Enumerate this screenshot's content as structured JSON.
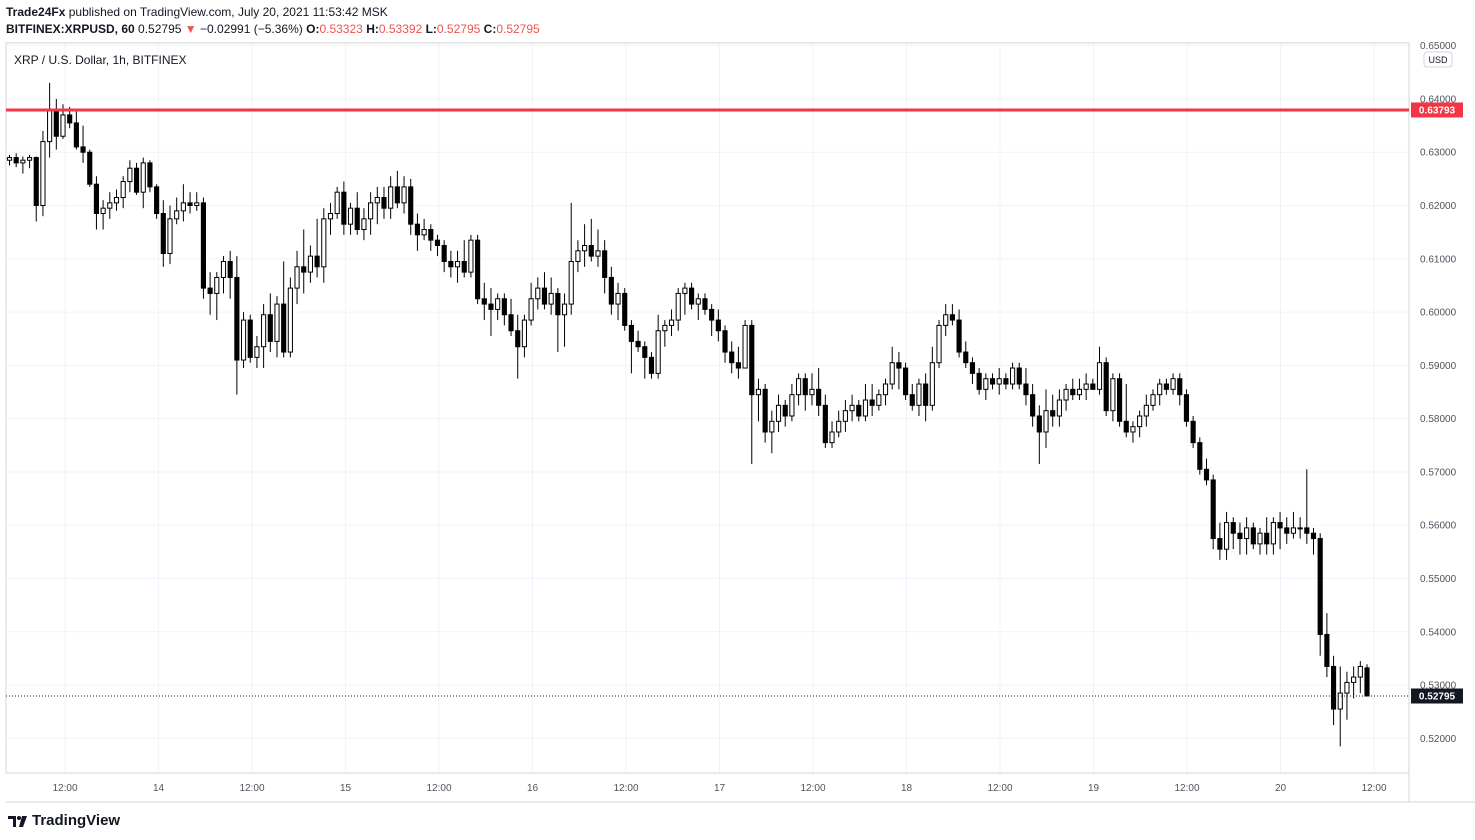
{
  "header": {
    "publisher": "Trade24Fx",
    "published_text": "published on TradingView.com, July 20, 2021 11:53:42 MSK",
    "symbol": "BITFINEX:XRPUSD, 60",
    "last": "0.52795",
    "change": "−0.02991 (−5.36%)",
    "open_label": "O:",
    "open": "0.53323",
    "high_label": "H:",
    "high": "0.53392",
    "low_label": "L:",
    "low": "0.52795",
    "close_label": "C:",
    "close": "0.52795"
  },
  "chart_title": "XRP / U.S. Dollar, 1h, BITFINEX",
  "currency_badge": "USD",
  "footer": {
    "brand": "TradingView"
  },
  "colors": {
    "resistance": "#f23645",
    "candle": "#000000",
    "grid": "#f0f3fa",
    "last_badge": "#131722"
  },
  "chart_data": {
    "type": "candlestick",
    "ylim": [
      0.5135,
      0.6505
    ],
    "y_ticks": [
      "0.52000",
      "0.53000",
      "0.54000",
      "0.55000",
      "0.56000",
      "0.57000",
      "0.58000",
      "0.59000",
      "0.60000",
      "0.61000",
      "0.62000",
      "0.63000",
      "0.64000",
      "0.65000"
    ],
    "x_ticks": [
      "12:00",
      "14",
      "12:00",
      "15",
      "12:00",
      "16",
      "12:00",
      "17",
      "12:00",
      "18",
      "12:00",
      "19",
      "12:00",
      "20",
      "12:00"
    ],
    "resistance_level": "0.63793",
    "last_price": "0.52795",
    "candles": [
      [
        0.6285,
        0.6295,
        0.6275,
        0.629
      ],
      [
        0.629,
        0.6298,
        0.6272,
        0.628
      ],
      [
        0.628,
        0.6292,
        0.626,
        0.6285
      ],
      [
        0.6285,
        0.6295,
        0.627,
        0.629
      ],
      [
        0.629,
        0.6292,
        0.617,
        0.62
      ],
      [
        0.62,
        0.634,
        0.618,
        0.632
      ],
      [
        0.632,
        0.643,
        0.629,
        0.638
      ],
      [
        0.638,
        0.64,
        0.6305,
        0.633
      ],
      [
        0.633,
        0.639,
        0.6325,
        0.637
      ],
      [
        0.637,
        0.6385,
        0.6345,
        0.6355
      ],
      [
        0.6355,
        0.638,
        0.6305,
        0.631
      ],
      [
        0.631,
        0.635,
        0.628,
        0.63
      ],
      [
        0.63,
        0.6305,
        0.6235,
        0.624
      ],
      [
        0.624,
        0.6255,
        0.6155,
        0.6185
      ],
      [
        0.6185,
        0.621,
        0.6155,
        0.6195
      ],
      [
        0.6195,
        0.6225,
        0.6175,
        0.6205
      ],
      [
        0.6205,
        0.623,
        0.619,
        0.6215
      ],
      [
        0.6215,
        0.6255,
        0.6195,
        0.6245
      ],
      [
        0.6245,
        0.6285,
        0.6225,
        0.627
      ],
      [
        0.627,
        0.628,
        0.622,
        0.6225
      ],
      [
        0.6225,
        0.629,
        0.6195,
        0.628
      ],
      [
        0.628,
        0.6285,
        0.6225,
        0.6235
      ],
      [
        0.6235,
        0.624,
        0.6175,
        0.6185
      ],
      [
        0.6185,
        0.621,
        0.6085,
        0.611
      ],
      [
        0.611,
        0.62,
        0.609,
        0.6175
      ],
      [
        0.6175,
        0.6215,
        0.6165,
        0.619
      ],
      [
        0.619,
        0.624,
        0.617,
        0.6205
      ],
      [
        0.6205,
        0.6225,
        0.6185,
        0.62
      ],
      [
        0.62,
        0.6225,
        0.619,
        0.6205
      ],
      [
        0.6205,
        0.6215,
        0.6025,
        0.6045
      ],
      [
        0.6045,
        0.6075,
        0.5995,
        0.6035
      ],
      [
        0.6035,
        0.6075,
        0.5985,
        0.6065
      ],
      [
        0.6065,
        0.6105,
        0.6035,
        0.6095
      ],
      [
        0.6095,
        0.6115,
        0.6025,
        0.6065
      ],
      [
        0.6065,
        0.6105,
        0.5845,
        0.591
      ],
      [
        0.591,
        0.6,
        0.5895,
        0.5985
      ],
      [
        0.5985,
        0.5995,
        0.5905,
        0.5915
      ],
      [
        0.5915,
        0.5955,
        0.5895,
        0.5935
      ],
      [
        0.5935,
        0.6015,
        0.5895,
        0.5995
      ],
      [
        0.5995,
        0.6035,
        0.5925,
        0.5945
      ],
      [
        0.5945,
        0.603,
        0.5915,
        0.6015
      ],
      [
        0.6015,
        0.6095,
        0.5915,
        0.5925
      ],
      [
        0.5925,
        0.6065,
        0.5915,
        0.6045
      ],
      [
        0.6045,
        0.6115,
        0.6015,
        0.6085
      ],
      [
        0.6085,
        0.6155,
        0.6035,
        0.6075
      ],
      [
        0.6075,
        0.6125,
        0.6055,
        0.6105
      ],
      [
        0.6105,
        0.6175,
        0.6065,
        0.6085
      ],
      [
        0.6085,
        0.6195,
        0.6055,
        0.6175
      ],
      [
        0.6175,
        0.6205,
        0.6145,
        0.6185
      ],
      [
        0.6185,
        0.6235,
        0.6175,
        0.6225
      ],
      [
        0.6225,
        0.6245,
        0.6145,
        0.6165
      ],
      [
        0.6165,
        0.6205,
        0.6145,
        0.6195
      ],
      [
        0.6195,
        0.6225,
        0.6145,
        0.6155
      ],
      [
        0.6155,
        0.6195,
        0.6135,
        0.6175
      ],
      [
        0.6175,
        0.6225,
        0.6145,
        0.6205
      ],
      [
        0.6205,
        0.6235,
        0.6165,
        0.6215
      ],
      [
        0.6215,
        0.6235,
        0.6175,
        0.6195
      ],
      [
        0.6195,
        0.6255,
        0.6175,
        0.6235
      ],
      [
        0.6235,
        0.6265,
        0.6195,
        0.6205
      ],
      [
        0.6205,
        0.6255,
        0.6185,
        0.6235
      ],
      [
        0.6235,
        0.625,
        0.6145,
        0.6165
      ],
      [
        0.6165,
        0.6185,
        0.6115,
        0.6145
      ],
      [
        0.6145,
        0.6175,
        0.6135,
        0.6155
      ],
      [
        0.6155,
        0.6165,
        0.6115,
        0.6135
      ],
      [
        0.6135,
        0.6145,
        0.6105,
        0.6125
      ],
      [
        0.6125,
        0.6135,
        0.6075,
        0.6095
      ],
      [
        0.6095,
        0.6115,
        0.6065,
        0.6085
      ],
      [
        0.6085,
        0.6115,
        0.6055,
        0.6095
      ],
      [
        0.6095,
        0.6135,
        0.6065,
        0.6075
      ],
      [
        0.6075,
        0.6145,
        0.6065,
        0.6135
      ],
      [
        0.6135,
        0.6145,
        0.6015,
        0.6025
      ],
      [
        0.6025,
        0.6055,
        0.5985,
        0.6015
      ],
      [
        0.6015,
        0.6045,
        0.5955,
        0.6005
      ],
      [
        0.6005,
        0.6035,
        0.5985,
        0.6025
      ],
      [
        0.6025,
        0.6035,
        0.5975,
        0.5995
      ],
      [
        0.5995,
        0.6025,
        0.5955,
        0.5965
      ],
      [
        0.5965,
        0.5995,
        0.5875,
        0.5935
      ],
      [
        0.5935,
        0.5995,
        0.5915,
        0.5985
      ],
      [
        0.5985,
        0.6055,
        0.5975,
        0.6025
      ],
      [
        0.6025,
        0.6065,
        0.6005,
        0.6045
      ],
      [
        0.6045,
        0.6075,
        0.6005,
        0.6015
      ],
      [
        0.6015,
        0.6065,
        0.5995,
        0.6035
      ],
      [
        0.6035,
        0.6045,
        0.5925,
        0.5995
      ],
      [
        0.5995,
        0.6035,
        0.5935,
        0.6015
      ],
      [
        0.6015,
        0.6205,
        0.5995,
        0.6095
      ],
      [
        0.6095,
        0.6135,
        0.6075,
        0.6115
      ],
      [
        0.6115,
        0.6165,
        0.6085,
        0.6125
      ],
      [
        0.6125,
        0.6175,
        0.6095,
        0.6105
      ],
      [
        0.6105,
        0.6155,
        0.6085,
        0.6115
      ],
      [
        0.6115,
        0.6135,
        0.6035,
        0.6065
      ],
      [
        0.6065,
        0.6085,
        0.5995,
        0.6015
      ],
      [
        0.6015,
        0.6055,
        0.5985,
        0.6035
      ],
      [
        0.6035,
        0.6045,
        0.5965,
        0.5975
      ],
      [
        0.5975,
        0.5985,
        0.5885,
        0.5945
      ],
      [
        0.5945,
        0.5965,
        0.5925,
        0.5935
      ],
      [
        0.5935,
        0.5945,
        0.5875,
        0.5915
      ],
      [
        0.5915,
        0.5925,
        0.5875,
        0.5885
      ],
      [
        0.5885,
        0.5995,
        0.5875,
        0.5965
      ],
      [
        0.5965,
        0.5985,
        0.5935,
        0.5975
      ],
      [
        0.5975,
        0.6005,
        0.5955,
        0.5985
      ],
      [
        0.5985,
        0.6045,
        0.5965,
        0.6035
      ],
      [
        0.6035,
        0.6055,
        0.5995,
        0.6045
      ],
      [
        0.6045,
        0.6055,
        0.6005,
        0.6015
      ],
      [
        0.6015,
        0.6035,
        0.5985,
        0.6025
      ],
      [
        0.6025,
        0.6035,
        0.5995,
        0.6005
      ],
      [
        0.6005,
        0.6015,
        0.5955,
        0.5985
      ],
      [
        0.5985,
        0.6005,
        0.5945,
        0.5965
      ],
      [
        0.5965,
        0.5975,
        0.5905,
        0.5925
      ],
      [
        0.5925,
        0.5945,
        0.5885,
        0.5905
      ],
      [
        0.5905,
        0.5935,
        0.5875,
        0.5895
      ],
      [
        0.5895,
        0.5985,
        0.5895,
        0.5975
      ],
      [
        0.5975,
        0.5985,
        0.5715,
        0.5845
      ],
      [
        0.5845,
        0.5875,
        0.5795,
        0.5855
      ],
      [
        0.5855,
        0.5865,
        0.5755,
        0.5775
      ],
      [
        0.5775,
        0.5815,
        0.5735,
        0.5795
      ],
      [
        0.5795,
        0.5845,
        0.5775,
        0.5825
      ],
      [
        0.5825,
        0.5835,
        0.5785,
        0.5805
      ],
      [
        0.5805,
        0.5865,
        0.5795,
        0.5845
      ],
      [
        0.5845,
        0.5885,
        0.5825,
        0.5875
      ],
      [
        0.5875,
        0.5885,
        0.5815,
        0.5845
      ],
      [
        0.5845,
        0.5885,
        0.5825,
        0.5855
      ],
      [
        0.5855,
        0.5895,
        0.5805,
        0.5825
      ],
      [
        0.5825,
        0.5845,
        0.5745,
        0.5755
      ],
      [
        0.5755,
        0.5795,
        0.5745,
        0.5775
      ],
      [
        0.5775,
        0.5815,
        0.5765,
        0.5795
      ],
      [
        0.5795,
        0.5835,
        0.5775,
        0.5815
      ],
      [
        0.5815,
        0.5845,
        0.5795,
        0.5825
      ],
      [
        0.5825,
        0.5835,
        0.5795,
        0.5805
      ],
      [
        0.5805,
        0.5865,
        0.5795,
        0.5835
      ],
      [
        0.5835,
        0.5865,
        0.5805,
        0.5825
      ],
      [
        0.5825,
        0.5855,
        0.5815,
        0.5845
      ],
      [
        0.5845,
        0.5875,
        0.5825,
        0.5865
      ],
      [
        0.5865,
        0.5935,
        0.5855,
        0.5905
      ],
      [
        0.5905,
        0.5925,
        0.5855,
        0.5895
      ],
      [
        0.5895,
        0.5905,
        0.5835,
        0.5845
      ],
      [
        0.5845,
        0.5865,
        0.5815,
        0.5825
      ],
      [
        0.5825,
        0.5875,
        0.5805,
        0.5865
      ],
      [
        0.5865,
        0.5885,
        0.5795,
        0.5825
      ],
      [
        0.5825,
        0.5935,
        0.5815,
        0.5905
      ],
      [
        0.5905,
        0.5985,
        0.5895,
        0.5975
      ],
      [
        0.5975,
        0.6015,
        0.5955,
        0.5995
      ],
      [
        0.5995,
        0.6015,
        0.5975,
        0.5985
      ],
      [
        0.5985,
        0.6005,
        0.5915,
        0.5925
      ],
      [
        0.5925,
        0.5945,
        0.5895,
        0.5905
      ],
      [
        0.5905,
        0.5915,
        0.5865,
        0.5885
      ],
      [
        0.5885,
        0.5895,
        0.5845,
        0.5855
      ],
      [
        0.5855,
        0.5885,
        0.5835,
        0.5875
      ],
      [
        0.5875,
        0.5885,
        0.5855,
        0.5865
      ],
      [
        0.5865,
        0.5895,
        0.5845,
        0.5875
      ],
      [
        0.5875,
        0.5885,
        0.5855,
        0.5865
      ],
      [
        0.5865,
        0.5905,
        0.5855,
        0.5895
      ],
      [
        0.5895,
        0.5905,
        0.5855,
        0.5865
      ],
      [
        0.5865,
        0.5895,
        0.5825,
        0.5845
      ],
      [
        0.5845,
        0.5865,
        0.5785,
        0.5805
      ],
      [
        0.5805,
        0.5825,
        0.5715,
        0.5775
      ],
      [
        0.5775,
        0.5855,
        0.5745,
        0.5815
      ],
      [
        0.5815,
        0.5845,
        0.5785,
        0.5805
      ],
      [
        0.5805,
        0.5855,
        0.5785,
        0.5835
      ],
      [
        0.5835,
        0.5865,
        0.5815,
        0.5855
      ],
      [
        0.5855,
        0.5875,
        0.5835,
        0.5845
      ],
      [
        0.5845,
        0.5875,
        0.5835,
        0.5855
      ],
      [
        0.5855,
        0.5885,
        0.5835,
        0.5865
      ],
      [
        0.5865,
        0.5875,
        0.5855,
        0.5855
      ],
      [
        0.5855,
        0.5935,
        0.5845,
        0.5905
      ],
      [
        0.5905,
        0.5915,
        0.5805,
        0.5815
      ],
      [
        0.5815,
        0.5885,
        0.5795,
        0.5875
      ],
      [
        0.5875,
        0.5885,
        0.5785,
        0.5795
      ],
      [
        0.5795,
        0.5865,
        0.5765,
        0.5775
      ],
      [
        0.5775,
        0.5795,
        0.5755,
        0.5785
      ],
      [
        0.5785,
        0.5815,
        0.5765,
        0.5805
      ],
      [
        0.5805,
        0.5845,
        0.5785,
        0.5825
      ],
      [
        0.5825,
        0.5855,
        0.5815,
        0.5845
      ],
      [
        0.5845,
        0.5875,
        0.5825,
        0.5865
      ],
      [
        0.5865,
        0.5875,
        0.5845,
        0.5855
      ],
      [
        0.5855,
        0.5885,
        0.5845,
        0.5875
      ],
      [
        0.5875,
        0.5885,
        0.5825,
        0.5845
      ],
      [
        0.5845,
        0.5855,
        0.5785,
        0.5795
      ],
      [
        0.5795,
        0.5805,
        0.5745,
        0.5755
      ],
      [
        0.5755,
        0.5765,
        0.5695,
        0.5705
      ],
      [
        0.5705,
        0.5725,
        0.5675,
        0.5685
      ],
      [
        0.5685,
        0.5695,
        0.5555,
        0.5575
      ],
      [
        0.5575,
        0.5605,
        0.5535,
        0.5555
      ],
      [
        0.5555,
        0.5625,
        0.5535,
        0.5605
      ],
      [
        0.5605,
        0.5615,
        0.5555,
        0.5585
      ],
      [
        0.5585,
        0.5605,
        0.5545,
        0.5575
      ],
      [
        0.5575,
        0.5615,
        0.5545,
        0.5595
      ],
      [
        0.5595,
        0.5605,
        0.5555,
        0.5565
      ],
      [
        0.5565,
        0.5595,
        0.5545,
        0.5585
      ],
      [
        0.5585,
        0.5615,
        0.5545,
        0.5565
      ],
      [
        0.5565,
        0.5615,
        0.5545,
        0.5605
      ],
      [
        0.5605,
        0.5625,
        0.5555,
        0.5595
      ],
      [
        0.5595,
        0.5615,
        0.5565,
        0.5585
      ],
      [
        0.5585,
        0.5625,
        0.5575,
        0.5595
      ],
      [
        0.5595,
        0.5615,
        0.5575,
        0.5595
      ],
      [
        0.5595,
        0.5705,
        0.5565,
        0.5585
      ],
      [
        0.5585,
        0.5595,
        0.5545,
        0.5575
      ],
      [
        0.5575,
        0.5585,
        0.5355,
        0.5395
      ],
      [
        0.5395,
        0.5435,
        0.5315,
        0.5335
      ],
      [
        0.5335,
        0.5355,
        0.5225,
        0.5255
      ],
      [
        0.5255,
        0.5335,
        0.5185,
        0.5285
      ],
      [
        0.5285,
        0.5325,
        0.5235,
        0.5305
      ],
      [
        0.5305,
        0.5335,
        0.5275,
        0.5315
      ],
      [
        0.5315,
        0.5345,
        0.5285,
        0.5335
      ],
      [
        0.53323,
        0.53392,
        0.52795,
        0.52795
      ]
    ]
  }
}
